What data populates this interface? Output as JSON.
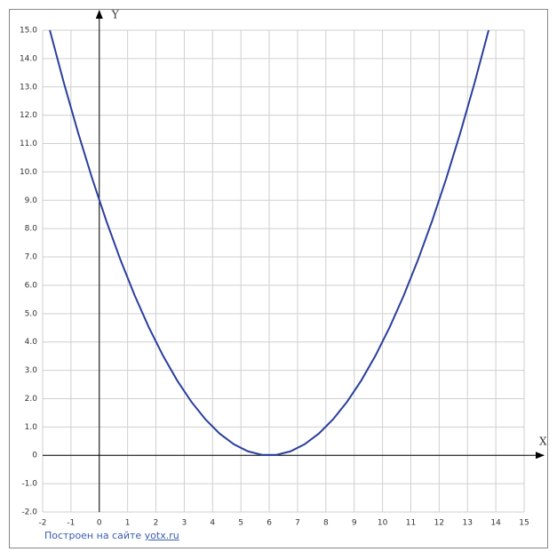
{
  "chart_data": {
    "type": "line",
    "x_label": "X",
    "y_label": "Y",
    "x": [
      -1.75,
      -1.25,
      -0.75,
      -0.25,
      0.25,
      0.75,
      1.25,
      1.75,
      2.25,
      2.75,
      3.25,
      3.75,
      4.25,
      4.75,
      5.25,
      5.75,
      6.25,
      6.75,
      7.25,
      7.75,
      8.25,
      8.75,
      9.25,
      9.75,
      10.25,
      10.75,
      11.25,
      11.75,
      12.25,
      12.75,
      13.25,
      13.75
    ],
    "values": [
      15.015625,
      13.140625,
      11.390625,
      9.765625,
      8.265625,
      6.890625,
      5.640625,
      4.515625,
      3.515625,
      2.640625,
      1.890625,
      1.265625,
      0.765625,
      0.390625,
      0.140625,
      0.015625,
      0.015625,
      0.140625,
      0.390625,
      0.765625,
      1.265625,
      1.890625,
      2.640625,
      3.515625,
      4.515625,
      5.640625,
      6.890625,
      8.265625,
      9.765625,
      11.390625,
      13.140625,
      15.015625
    ],
    "color": "#2a3f9c",
    "xlim": [
      -2,
      15
    ],
    "ylim": [
      -2,
      15
    ],
    "xticks": [
      -2,
      -1,
      0,
      1,
      2,
      3,
      4,
      5,
      6,
      7,
      8,
      9,
      10,
      11,
      12,
      13,
      14,
      15
    ],
    "yticks": [
      {
        "value": -2,
        "label": "-2.0"
      },
      {
        "value": -1,
        "label": "-1.0"
      },
      0,
      {
        "value": 1,
        "label": "1.0"
      },
      {
        "value": 2,
        "label": "2.0"
      },
      {
        "value": 3,
        "label": "3.0"
      },
      {
        "value": 4,
        "label": "4.0"
      },
      {
        "value": 5,
        "label": "5.0"
      },
      {
        "value": 6,
        "label": "6.0"
      },
      {
        "value": 7,
        "label": "7.0"
      },
      {
        "value": 8,
        "label": "8.0"
      },
      {
        "value": 9,
        "label": "9.0"
      },
      {
        "value": 10,
        "label": "10.0"
      },
      {
        "value": 11,
        "label": "11.0"
      },
      {
        "value": 12,
        "label": "12.0"
      },
      {
        "value": 13,
        "label": "13.0"
      },
      {
        "value": 14,
        "label": "14.0"
      },
      {
        "value": 15,
        "label": "15.0"
      }
    ],
    "grid": true
  },
  "footer": {
    "text": "Построен на сайте",
    "link": "yotx.ru"
  }
}
